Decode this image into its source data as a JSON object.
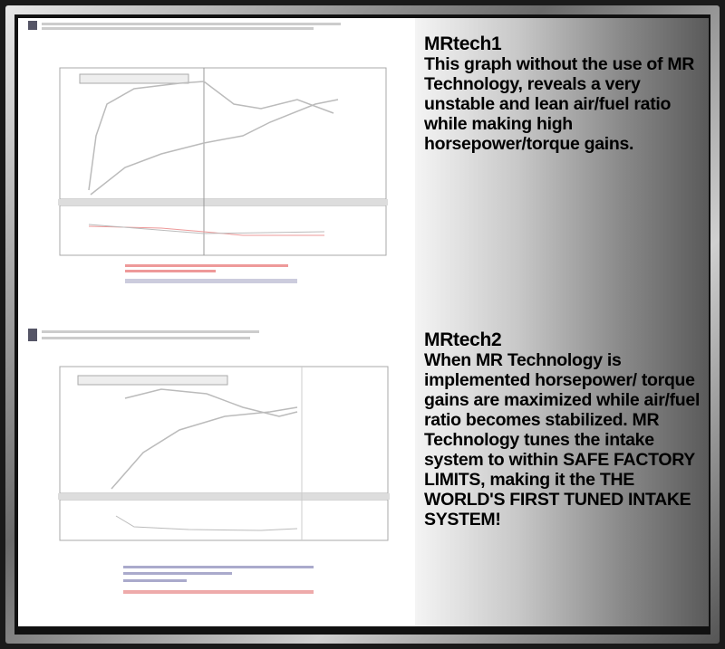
{
  "panels": [
    {
      "heading": "MRtech1",
      "body": "This graph without the use of MR Technology, reveals a very unstable and lean air/fuel ratio while making high horsepower/torque gains."
    },
    {
      "heading": "MRtech2",
      "body": "When MR Technology is implemented horsepower/ torque gains are maximized while air/fuel ratio becomes stabilized. MR Technology tunes the intake system to within SAFE FACTORY LIMITS, making it the THE WORLD'S FIRST TUNED INTAKE SYSTEM!"
    }
  ],
  "colors": {
    "curve": "#bbbbbb",
    "annotation_red": "#e88",
    "annotation_blue": "#88c"
  }
}
